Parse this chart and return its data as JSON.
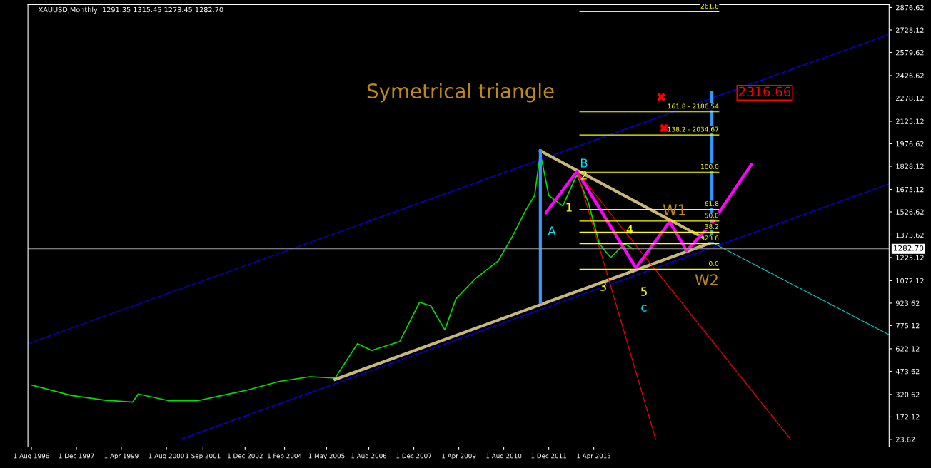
{
  "chart_data": {
    "type": "line",
    "title": "XAUUSD,Monthly  1291.35 1315.45 1273.45 1282.70",
    "x": [
      "1996-08",
      "1997-10",
      "1998-10",
      "1999-08",
      "1999-10",
      "2000-09",
      "2001-07",
      "2002-04",
      "2003-01",
      "2003-12",
      "2004-11",
      "2005-08",
      "2006-04",
      "2006-09",
      "2007-07",
      "2008-02",
      "2008-06",
      "2008-11",
      "2009-03",
      "2009-10",
      "2010-06",
      "2010-11",
      "2011-04",
      "2011-07",
      "2011-09",
      "2011-12",
      "2012-05",
      "2012-10",
      "2013-02",
      "2013-06",
      "2013-10",
      "2014-03",
      "2014-06"
    ],
    "xlim": [
      "1996-06-24",
      "2022-01"
    ],
    "xticks": [
      {
        "value": "1996-08-01",
        "label": "1 Aug 1996"
      },
      {
        "value": "1997-12-01",
        "label": "1 Dec 1997"
      },
      {
        "value": "1999-04-01",
        "label": "1 Apr 1999"
      },
      {
        "value": "2000-08-01",
        "label": "1 Aug 2000"
      },
      {
        "value": "2001-09-01",
        "label": "1 Sep 2001"
      },
      {
        "value": "2002-12-01",
        "label": "1 Dec 2002"
      },
      {
        "value": "2004-02-01",
        "label": "1 Feb 2004"
      },
      {
        "value": "2005-05-01",
        "label": "1 May 2005"
      },
      {
        "value": "2006-08-01",
        "label": "1 Aug 2006"
      },
      {
        "value": "2007-12-01",
        "label": "1 Dec 2007"
      },
      {
        "value": "2009-04-01",
        "label": "1 Apr 2009"
      },
      {
        "value": "2010-08-01",
        "label": "1 Aug 2010"
      },
      {
        "value": "2011-12-01",
        "label": "1 Dec 2011"
      },
      {
        "value": "2013-04-01",
        "label": "1 Apr 2013"
      }
    ],
    "ylim": [
      -26,
      2895
    ],
    "yticks": [
      23.62,
      172.12,
      320.62,
      473.62,
      622.12,
      775.12,
      923.62,
      1072.12,
      1225.12,
      1373.62,
      1526.62,
      1675.12,
      1828.12,
      1976.62,
      2125.12,
      2278.12,
      2426.62,
      2579.62,
      2728.12,
      2876.62
    ],
    "grid": false,
    "legend": false,
    "series": [
      {
        "color": "#00e000",
        "values": [
          383,
          315,
          283,
          270,
          324,
          279,
          279,
          315,
          351,
          406,
          438,
          429,
          656,
          611,
          670,
          929,
          906,
          747,
          952,
          1088,
          1202,
          1362,
          1543,
          1634,
          1917,
          1634,
          1566,
          1771,
          1589,
          1316,
          1225,
          1316,
          1283
        ]
      },
      {
        "color": "#0000ff",
        "x": [
          "1996-06-24",
          "2022-01"
        ],
        "values": [
          656,
          2699
        ]
      },
      {
        "color": "#0000ff",
        "x": [
          "2001-01",
          "2022-01"
        ],
        "values": [
          24,
          1712
        ]
      },
      {
        "color": "#c8b878",
        "x": [
          "2005-08",
          "2016-10"
        ],
        "values": [
          420,
          1325
        ]
      },
      {
        "color": "#c8b878",
        "x": [
          "2011-09",
          "2016-10"
        ],
        "values": [
          1930,
          1325
        ]
      },
      {
        "color": "#3399ff",
        "x": [
          "2011-09",
          "2011-09"
        ],
        "values": [
          930,
          1930
        ]
      },
      {
        "color": "#3399ff",
        "x": [
          "2016-10",
          "2016-10"
        ],
        "values": [
          1325,
          2317
        ]
      },
      {
        "color": "#ff00ff",
        "x": [
          "2011-11",
          "2012-10",
          "2014-07",
          "2015-07",
          "2016-01",
          "2016-10",
          "2017-12"
        ],
        "values": [
          1521,
          1794,
          1157,
          1462,
          1270,
          1452,
          1839
        ]
      },
      {
        "color": "#ff0000",
        "x": [
          "2012-10",
          "2015-02"
        ],
        "values": [
          1794,
          24
        ]
      },
      {
        "color": "#ff0000",
        "x": [
          "2012-10",
          "2019-02"
        ],
        "values": [
          1794,
          24
        ]
      },
      {
        "color": "#00cccc",
        "x": [
          "2016-10",
          "2022-01"
        ],
        "values": [
          1325,
          715
        ]
      },
      {
        "color": "#ffff00",
        "x": [
          "2012-11",
          "2016-12-15"
        ],
        "values": [
          2849,
          2849
        ]
      },
      {
        "color": "#ffff00",
        "x": [
          "2012-11",
          "2016-12-15"
        ],
        "values": [
          2187,
          2187
        ]
      },
      {
        "color": "#ffff00",
        "x": [
          "2012-11",
          "2016-12-15"
        ],
        "values": [
          2035,
          2035
        ]
      },
      {
        "color": "#ffff00",
        "x": [
          "2012-11",
          "2016-12-15"
        ],
        "values": [
          1789,
          1789
        ]
      },
      {
        "color": "#ffff00",
        "x": [
          "2012-11",
          "2016-12-15"
        ],
        "values": [
          1543,
          1543
        ]
      },
      {
        "color": "#ffff00",
        "x": [
          "2012-11",
          "2016-12-15"
        ],
        "values": [
          1466,
          1466
        ]
      },
      {
        "color": "#ffff00",
        "x": [
          "2012-11",
          "2016-12-15"
        ],
        "values": [
          1393,
          1393
        ]
      },
      {
        "color": "#ffff00",
        "x": [
          "2012-11",
          "2016-12-15"
        ],
        "values": [
          1316,
          1316
        ]
      },
      {
        "color": "#ffff00",
        "x": [
          "2012-11",
          "2016-12-15"
        ],
        "values": [
          1148,
          1148
        ]
      },
      {
        "type": "scatter",
        "marker": "cross",
        "color": "#ff0000",
        "x": [
          "2015-04",
          "2015-05"
        ],
        "values": [
          2285,
          2080
        ]
      }
    ],
    "ref_lines": [
      {
        "axis": "y",
        "value": 1282.7,
        "label": "1282.70",
        "color": "#a0a0a0"
      }
    ],
    "annotations": [
      "Symetrical triangle",
      "A",
      "B",
      "2",
      "1",
      "3",
      "4",
      "5",
      "c",
      "W1",
      "W2",
      "2316.66",
      "261.8",
      "161.8 - 2186.54",
      "138.2 - 2034.67",
      "100.0",
      "61.8",
      "50.0",
      "38.2",
      "23.6",
      "0.0"
    ]
  }
}
